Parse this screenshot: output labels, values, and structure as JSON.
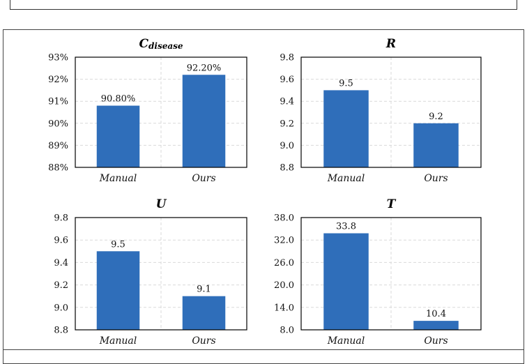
{
  "colors": {
    "bar": "#2F6EBA",
    "grid": "#D9D9D9",
    "frame": "#000000"
  },
  "chart_data": [
    {
      "type": "bar",
      "title": "C",
      "title_subscript": "disease",
      "categories": [
        "Manual",
        "Ours"
      ],
      "values": [
        90.8,
        92.2
      ],
      "value_labels": [
        "90.80%",
        "92.20%"
      ],
      "yticks": [
        "88%",
        "89%",
        "90%",
        "91%",
        "92%",
        "93%"
      ],
      "ylim": [
        88,
        93
      ],
      "grid": true
    },
    {
      "type": "bar",
      "title": "R",
      "categories": [
        "Manual",
        "Ours"
      ],
      "values": [
        9.5,
        9.2
      ],
      "value_labels": [
        "9.5",
        "9.2"
      ],
      "yticks": [
        "8.8",
        "9.0",
        "9.2",
        "9.4",
        "9.6",
        "9.8"
      ],
      "ylim": [
        8.8,
        9.8
      ],
      "grid": true
    },
    {
      "type": "bar",
      "title": "U",
      "categories": [
        "Manual",
        "Ours"
      ],
      "values": [
        9.5,
        9.1
      ],
      "value_labels": [
        "9.5",
        "9.1"
      ],
      "yticks": [
        "8.8",
        "9.0",
        "9.2",
        "9.4",
        "9.6",
        "9.8"
      ],
      "ylim": [
        8.8,
        9.8
      ],
      "grid": true
    },
    {
      "type": "bar",
      "title": "T",
      "categories": [
        "Manual",
        "Ours"
      ],
      "values": [
        33.8,
        10.4
      ],
      "value_labels": [
        "33.8",
        "10.4"
      ],
      "yticks": [
        "8.0",
        "14.0",
        "20.0",
        "26.0",
        "32.0",
        "38.0"
      ],
      "ylim": [
        8,
        38
      ],
      "grid": true
    }
  ]
}
